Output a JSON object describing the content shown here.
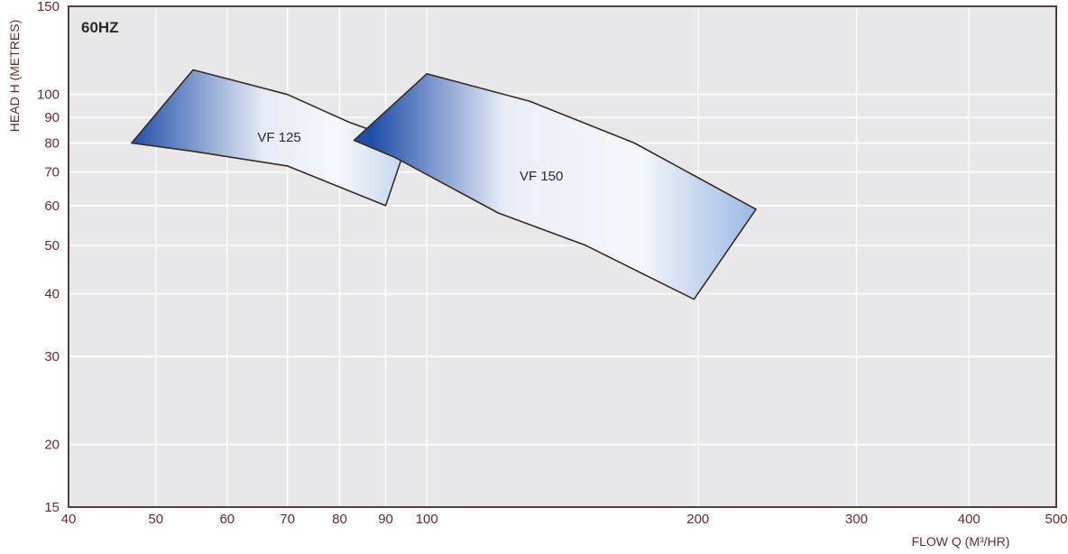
{
  "chart_data": {
    "type": "area",
    "title": "60HZ",
    "xlabel": "FLOW Q (M³/HR)",
    "ylabel": "HEAD H (METRES)",
    "x_scale": "log",
    "y_scale": "log",
    "xlim": [
      40,
      500
    ],
    "ylim": [
      15,
      150
    ],
    "x_ticks": [
      40,
      50,
      60,
      70,
      80,
      90,
      100,
      200,
      300,
      400,
      500
    ],
    "y_ticks": [
      15,
      20,
      30,
      40,
      50,
      60,
      70,
      80,
      90,
      100,
      150
    ],
    "grid": true,
    "series": [
      {
        "name": "VF 125",
        "polygon": [
          {
            "x": 47,
            "y": 80
          },
          {
            "x": 55,
            "y": 112
          },
          {
            "x": 70,
            "y": 100
          },
          {
            "x": 82,
            "y": 88
          },
          {
            "x": 95,
            "y": 80
          },
          {
            "x": 90,
            "y": 60
          },
          {
            "x": 70,
            "y": 72
          },
          {
            "x": 55,
            "y": 77
          },
          {
            "x": 47,
            "y": 80
          }
        ]
      },
      {
        "name": "VF 150",
        "polygon": [
          {
            "x": 83,
            "y": 81
          },
          {
            "x": 100,
            "y": 110
          },
          {
            "x": 130,
            "y": 97
          },
          {
            "x": 170,
            "y": 80
          },
          {
            "x": 232,
            "y": 59
          },
          {
            "x": 198,
            "y": 39
          },
          {
            "x": 150,
            "y": 50
          },
          {
            "x": 120,
            "y": 58
          },
          {
            "x": 92,
            "y": 75
          },
          {
            "x": 83,
            "y": 81
          }
        ]
      }
    ],
    "colors": {
      "plot_background": "#e8e8ea",
      "grid": "#ffffff",
      "frame": "#5a3a3a",
      "text": "#6b2b2b",
      "region_dark": "#1f4ea8",
      "region_mid": "#c9d6ee",
      "region_light": "#f5f7fb",
      "region_edge": "#3a2a22"
    }
  }
}
